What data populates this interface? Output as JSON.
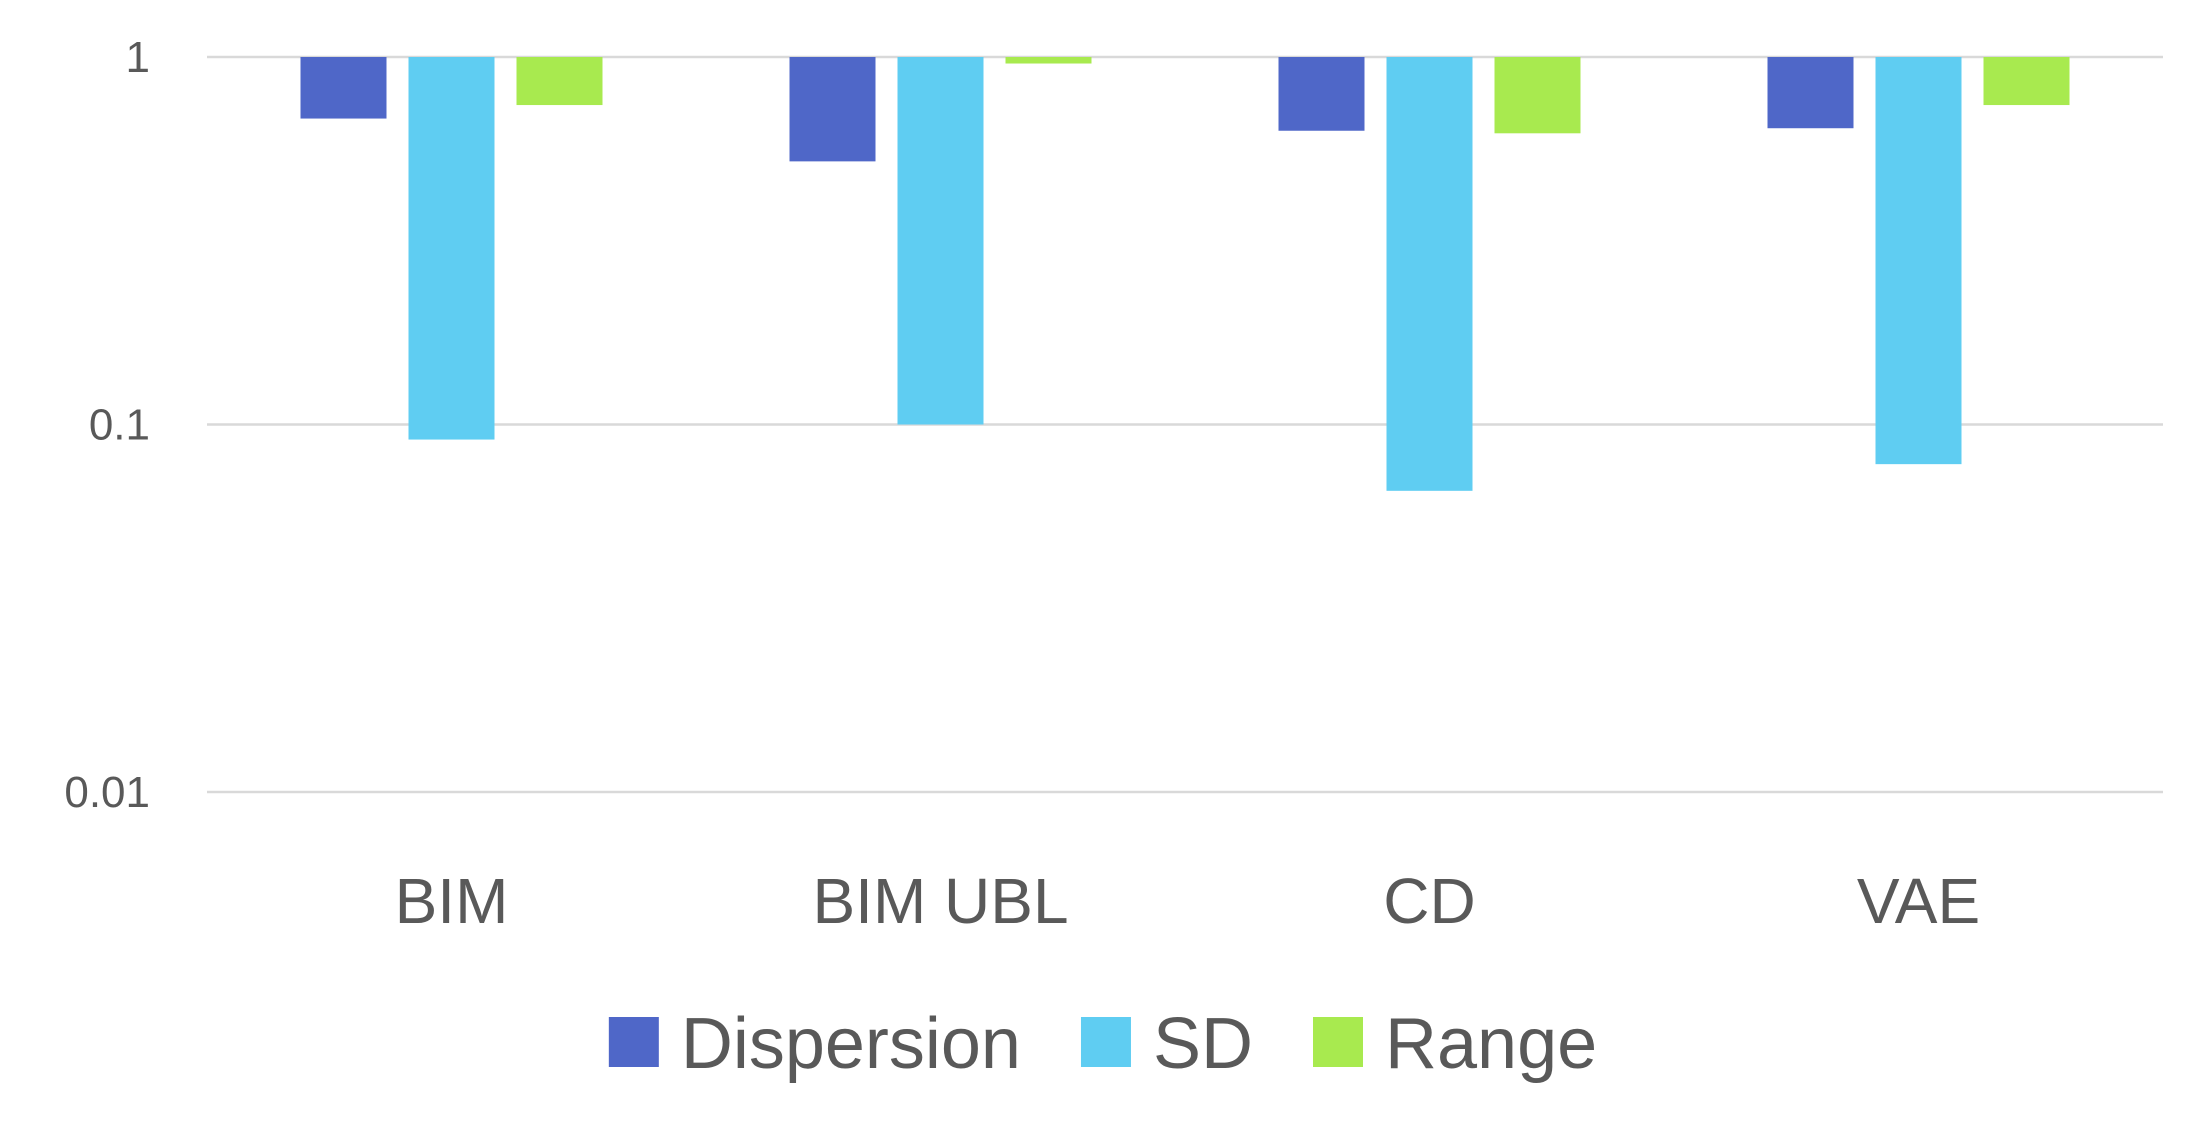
{
  "chart_data": {
    "type": "bar",
    "y_scale": "log",
    "y_axis_origin": "top",
    "ylim": [
      0.01,
      1
    ],
    "y_ticks": [
      {
        "value": 1,
        "label": "1"
      },
      {
        "value": 0.1,
        "label": "0.1"
      },
      {
        "value": 0.01,
        "label": "0.01"
      }
    ],
    "grid": true,
    "categories": [
      "BIM",
      "BIM UBL",
      "CD",
      "VAE"
    ],
    "series": [
      {
        "name": "Dispersion",
        "color": "#4f67c8",
        "values": [
          0.68,
          0.52,
          0.63,
          0.64
        ]
      },
      {
        "name": "SD",
        "color": "#5fcdf2",
        "values": [
          0.091,
          0.1,
          0.066,
          0.078
        ]
      },
      {
        "name": "Range",
        "color": "#a8ea4f",
        "values": [
          0.74,
          0.96,
          0.62,
          0.74
        ]
      }
    ],
    "legend_position": "bottom"
  }
}
